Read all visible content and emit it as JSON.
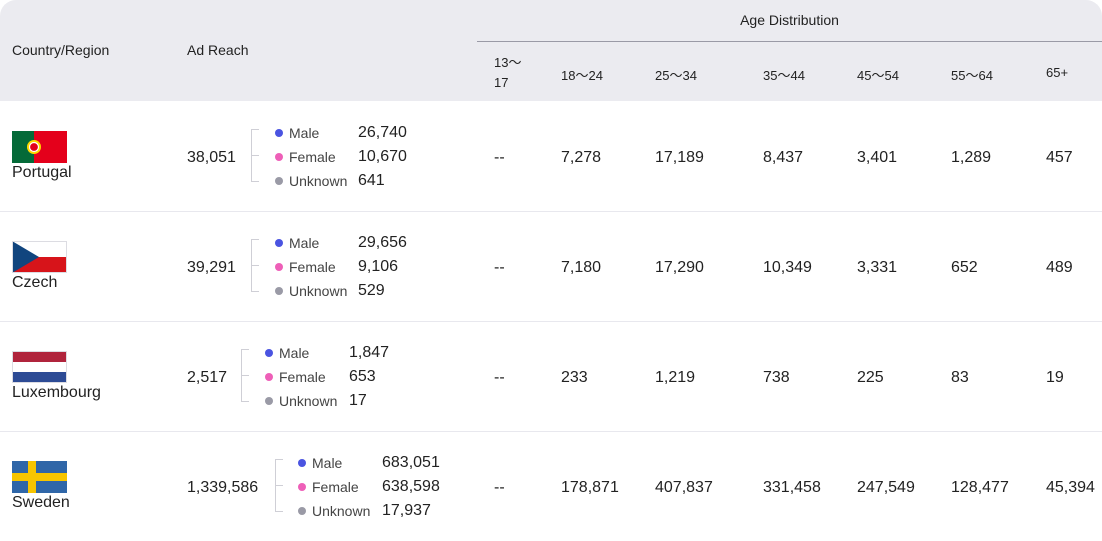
{
  "colors": {
    "header_bg": "#ebebf0",
    "male": "#4a54e1",
    "female": "#ee5fb8",
    "unknown": "#9a9aa6"
  },
  "header": {
    "country": "Country/Region",
    "ad_reach": "Ad Reach",
    "age_distribution": "Age Distribution",
    "age_cols": [
      "13～\n17",
      "18～24",
      "25～34",
      "35～44",
      "45～54",
      "55～64",
      "65+"
    ]
  },
  "gender_labels": {
    "male": "Male",
    "female": "Female",
    "unknown": "Unknown"
  },
  "rows": [
    {
      "country": "Portugal",
      "flag": "portugal-flag-icon",
      "reach": "38,051",
      "male": "26,740",
      "female": "10,670",
      "unknown": "641",
      "ages": [
        "--",
        "7,278",
        "17,189",
        "8,437",
        "3,401",
        "1,289",
        "457"
      ]
    },
    {
      "country": "Czech",
      "flag": "czech-flag-icon",
      "reach": "39,291",
      "male": "29,656",
      "female": "9,106",
      "unknown": "529",
      "ages": [
        "--",
        "7,180",
        "17,290",
        "10,349",
        "3,331",
        "652",
        "489"
      ]
    },
    {
      "country": "Luxembourg",
      "flag": "luxembourg-flag-icon",
      "reach": "2,517",
      "male": "1,847",
      "female": "653",
      "unknown": "17",
      "ages": [
        "--",
        "233",
        "1,219",
        "738",
        "225",
        "83",
        "19"
      ]
    },
    {
      "country": "Sweden",
      "flag": "sweden-flag-icon",
      "reach": "1,339,586",
      "male": "683,051",
      "female": "638,598",
      "unknown": "17,937",
      "ages": [
        "--",
        "178,871",
        "407,837",
        "331,458",
        "247,549",
        "128,477",
        "45,394"
      ]
    }
  ]
}
